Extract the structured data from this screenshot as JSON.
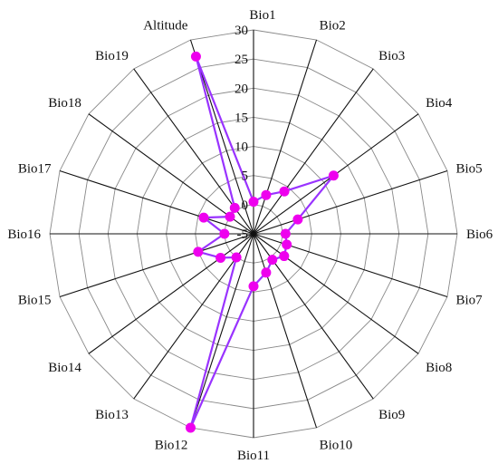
{
  "chart_data": {
    "type": "radar",
    "categories": [
      "Bio1",
      "Bio2",
      "Bio3",
      "Bio4",
      "Bio5",
      "Bio6",
      "Bio7",
      "Bio8",
      "Bio9",
      "Bio10",
      "Bio11",
      "Bio12",
      "Bio13",
      "Bio14",
      "Bio15",
      "Bio16",
      "Bio17",
      "Bio18",
      "Bio19",
      "Altitude"
    ],
    "radial_ticks": [
      "-5",
      "0",
      "5",
      "10",
      "15",
      "20",
      "25",
      "30"
    ],
    "rlim": [
      -5,
      30
    ],
    "grid": true,
    "series": [
      {
        "values": [
          0.5,
          2,
          4,
          12,
          3,
          0.5,
          1,
          1.5,
          0.5,
          2,
          4,
          30,
          0,
          2,
          5,
          0,
          4,
          0,
          0.5,
          27
        ],
        "color": "#ee00ee",
        "line_color": "#9933ff"
      }
    ]
  }
}
